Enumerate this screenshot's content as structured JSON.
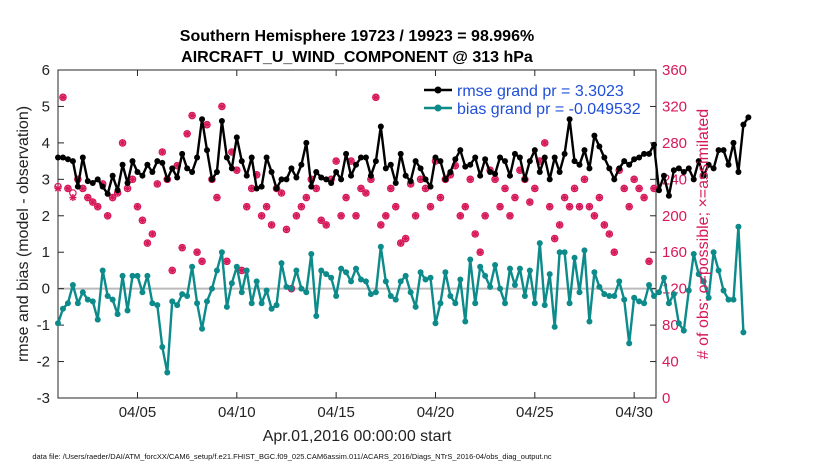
{
  "chart_data": {
    "type": "line",
    "title": "Southern Hemisphere 19723 / 19923 = 98.996%",
    "subtitle": "AIRCRAFT_U_WIND_COMPONENT @ 313 hPa",
    "xlabel": "Apr.01,2016 00:00:00 start",
    "ylabel": "rmse and bias (model - observation)",
    "y2label": "# of obs: o=possible; ×=assimilated",
    "xlim": [
      1.0,
      31.1
    ],
    "ylim": [
      -3,
      6
    ],
    "y2lim": [
      0,
      360
    ],
    "x_tick_values": [
      5,
      10,
      15,
      20,
      25,
      30
    ],
    "x_tick_labels": [
      "04/05",
      "04/10",
      "04/15",
      "04/20",
      "04/25",
      "04/30"
    ],
    "y_tick_labels": [
      "-3",
      "-2",
      "-1",
      "0",
      "1",
      "2",
      "3",
      "4",
      "5",
      "6"
    ],
    "y2_tick_labels": [
      "0",
      "40",
      "80",
      "120",
      "160",
      "200",
      "240",
      "280",
      "320",
      "360"
    ],
    "x_start": 1.0,
    "x_step": 0.25,
    "series": [
      {
        "name": "rmse grand pr = 3.3023",
        "color": "#000000",
        "values": [
          3.6,
          3.6,
          3.55,
          3.5,
          2.8,
          3.6,
          2.95,
          2.9,
          3.0,
          2.8,
          2.6,
          3.1,
          2.7,
          3.4,
          2.9,
          3.5,
          3.2,
          3.1,
          3.4,
          3.2,
          3.5,
          3.45,
          3.0,
          3.3,
          3.05,
          3.7,
          3.3,
          3.2,
          3.6,
          4.65,
          3.8,
          3.0,
          3.2,
          4.6,
          3.6,
          3.3,
          4.15,
          3.5,
          3.1,
          3.6,
          2.75,
          2.8,
          3.6,
          3.2,
          2.75,
          3.0,
          3.0,
          3.3,
          3.05,
          3.4,
          4.0,
          2.8,
          3.2,
          3.05,
          3.0,
          2.9,
          3.2,
          3.0,
          3.7,
          3.1,
          3.4,
          3.6,
          3.6,
          3.1,
          3.5,
          4.45,
          3.3,
          3.4,
          2.9,
          3.7,
          3.1,
          2.95,
          3.5,
          3.3,
          3.0,
          2.8,
          3.6,
          3.5,
          3.0,
          3.2,
          3.55,
          3.8,
          3.35,
          3.4,
          3.6,
          3.1,
          3.55,
          3.2,
          3.15,
          3.6,
          3.5,
          3.1,
          3.7,
          3.6,
          3.0,
          3.5,
          3.8,
          3.2,
          3.6,
          3.0,
          3.6,
          3.2,
          3.7,
          4.65,
          3.5,
          3.4,
          3.8,
          3.3,
          4.2,
          3.9,
          3.6,
          3.3,
          3.0,
          3.3,
          3.5,
          3.4,
          3.55,
          3.6,
          3.7,
          3.7,
          3.95,
          2.7,
          3.1,
          2.55,
          3.25,
          3.3,
          3.2,
          3.3,
          3.0,
          3.5,
          3.1,
          3.4,
          3.3,
          3.8,
          3.8,
          3.4,
          4.0,
          3.2,
          4.5,
          4.7
        ]
      },
      {
        "name": "bias grand pr = -0.049532",
        "color": "#0d8a8a",
        "values": [
          -0.95,
          -0.55,
          -0.4,
          0.1,
          -0.4,
          -0.1,
          -0.3,
          -0.35,
          -0.85,
          0.5,
          -0.2,
          -0.3,
          -0.7,
          0.35,
          -0.6,
          0.35,
          0.35,
          -0.1,
          0.35,
          -0.4,
          -0.45,
          -1.6,
          -2.3,
          -0.35,
          -0.45,
          -0.15,
          -0.2,
          0.6,
          -0.4,
          -1.1,
          -0.35,
          0.0,
          0.5,
          1.0,
          -0.5,
          0.15,
          0.6,
          -0.1,
          0.5,
          -0.4,
          0.2,
          -0.4,
          -0.05,
          -0.55,
          -0.45,
          0.7,
          0.05,
          0.0,
          0.5,
          0.0,
          -0.1,
          0.95,
          -0.75,
          0.5,
          0.4,
          0.3,
          -0.2,
          0.55,
          0.45,
          0.2,
          0.55,
          0.25,
          0.2,
          -0.15,
          -0.1,
          1.15,
          0.2,
          -0.2,
          -0.3,
          0.2,
          0.35,
          -0.1,
          -0.5,
          0.45,
          0.25,
          0.3,
          -0.95,
          -0.4,
          0.45,
          -0.2,
          -0.4,
          0.25,
          -0.9,
          0.8,
          -0.4,
          0.6,
          0.35,
          0.05,
          0.65,
          0.0,
          -0.4,
          0.55,
          0.1,
          0.55,
          -0.2,
          0.5,
          -0.4,
          1.25,
          -0.45,
          0.4,
          -1.05,
          1.0,
          1.0,
          -0.4,
          0.85,
          -0.1,
          1.05,
          -0.9,
          0.45,
          0.05,
          -0.15,
          -0.2,
          -0.2,
          0.2,
          -0.3,
          -1.5,
          -0.25,
          -0.35,
          -0.4,
          0.1,
          -0.2,
          -0.1,
          0.3,
          -0.4,
          -0.15,
          -0.95,
          -1.15,
          -0.05,
          0.95,
          0.4,
          0.2,
          -0.25,
          1.0,
          0.5,
          -0.05,
          -0.3,
          -0.3,
          1.7,
          -1.2
        ]
      }
    ],
    "obs_possible": [
      232,
      330,
      230,
      225,
      240,
      230,
      220,
      215,
      210,
      235,
      200,
      220,
      225,
      280,
      230,
      240,
      210,
      195,
      170,
      180,
      235,
      270,
      240,
      140,
      255,
      165,
      290,
      310,
      160,
      150,
      300,
      240,
      220,
      320,
      150,
      270,
      250,
      140,
      210,
      230,
      245,
      200,
      210,
      190,
      230,
      225,
      185,
      120,
      200,
      210,
      220,
      240,
      230,
      195,
      190,
      240,
      260,
      200,
      220,
      260,
      200,
      230,
      225,
      240,
      330,
      190,
      200,
      230,
      210,
      170,
      175,
      235,
      200,
      240,
      230,
      210,
      260,
      220,
      240,
      245,
      255,
      200,
      210,
      240,
      180,
      160,
      200,
      250,
      240,
      210,
      230,
      200,
      220,
      250,
      240,
      215,
      230,
      260,
      280,
      210,
      175,
      190,
      220,
      210,
      230,
      210,
      240,
      210,
      200,
      220,
      190,
      180,
      160,
      250,
      230,
      210,
      240,
      230,
      220,
      150,
      230,
      210,
      180,
      200,
      250,
      210,
      200,
      220,
      280,
      240,
      210,
      230,
      240,
      210,
      150,
      170,
      190,
      250,
      260,
      280
    ],
    "obs_assimilated": [
      230,
      330,
      230,
      220,
      240,
      230,
      220,
      215,
      210,
      235,
      200,
      220,
      225,
      280,
      230,
      240,
      210,
      195,
      170,
      180,
      235,
      270,
      240,
      140,
      255,
      165,
      290,
      310,
      160,
      150,
      300,
      240,
      220,
      320,
      150,
      270,
      250,
      140,
      210,
      230,
      245,
      200,
      210,
      190,
      230,
      225,
      185,
      120,
      200,
      210,
      220,
      240,
      230,
      195,
      190,
      240,
      260,
      200,
      220,
      260,
      200,
      230,
      225,
      240,
      330,
      190,
      200,
      230,
      210,
      170,
      175,
      235,
      200,
      240,
      230,
      210,
      260,
      220,
      240,
      245,
      255,
      200,
      210,
      240,
      180,
      160,
      200,
      250,
      240,
      210,
      230,
      200,
      220,
      250,
      240,
      215,
      230,
      260,
      280,
      210,
      175,
      190,
      220,
      210,
      230,
      210,
      240,
      210,
      200,
      220,
      190,
      180,
      160,
      250,
      230,
      210,
      240,
      230,
      220,
      150,
      230,
      210,
      180,
      200,
      250,
      210,
      200,
      220,
      280,
      240,
      210,
      230,
      240,
      210,
      150,
      170,
      190,
      250,
      260,
      280
    ],
    "legend_position": "top-right",
    "zero_line": true
  },
  "footer": {
    "datafile": "data file: /Users/raeder/DAI/ATM_forcXX/CAM6_setup/f.e21.FHIST_BGC.f09_025.CAM6assim.011/ACARS_2016/Diags_NTrS_2016-04/obs_diag_output.nc"
  },
  "colors": {
    "rmse": "#000000",
    "bias": "#0d8a8a",
    "obs": "#d6195b",
    "zero": "#bbbbbb"
  }
}
